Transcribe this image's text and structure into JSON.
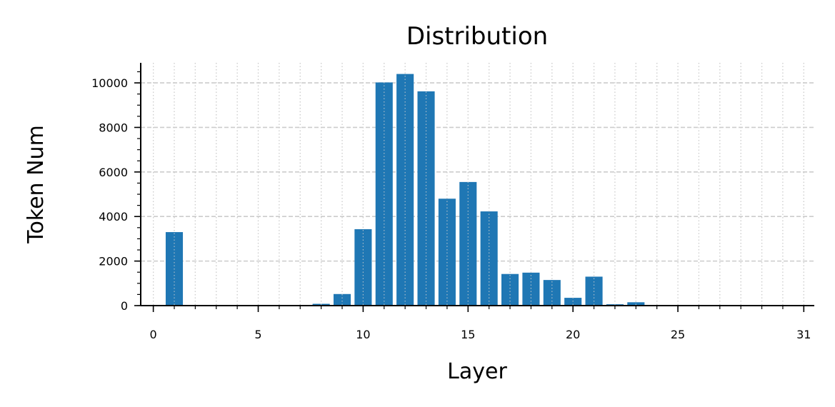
{
  "chart_data": {
    "type": "bar",
    "title": "Distribution",
    "xlabel": "Layer",
    "ylabel": "Token Num",
    "x": [
      0,
      1,
      2,
      3,
      4,
      5,
      6,
      7,
      8,
      9,
      10,
      11,
      12,
      13,
      14,
      15,
      16,
      17,
      18,
      19,
      20,
      21,
      22,
      23,
      24,
      25,
      26,
      27,
      28,
      29,
      30,
      31
    ],
    "values": [
      0,
      3300,
      0,
      0,
      0,
      0,
      0,
      0,
      80,
      520,
      3430,
      10020,
      10400,
      9620,
      4800,
      5550,
      4230,
      1420,
      1480,
      1150,
      350,
      1300,
      60,
      150,
      0,
      0,
      0,
      0,
      0,
      0,
      0,
      0
    ],
    "xlim": [
      -0.6,
      31.5
    ],
    "ylim": [
      0,
      10900
    ],
    "x_ticks": [
      "0",
      "5",
      "10",
      "15",
      "20",
      "25",
      "31"
    ],
    "y_ticks": [
      "0",
      "2000",
      "4000",
      "6000",
      "8000",
      "10000"
    ],
    "grid": "on",
    "bar_color": "#1f77b4"
  }
}
